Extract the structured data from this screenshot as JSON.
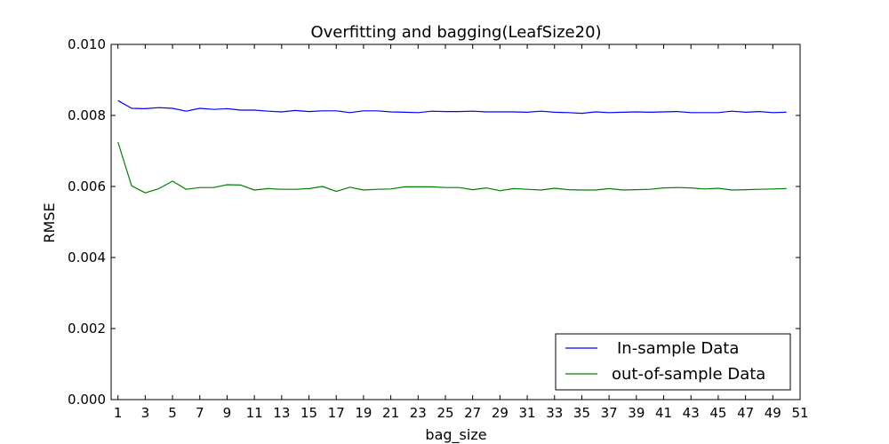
{
  "chart_data": {
    "type": "line",
    "title": "Overfitting and bagging(LeafSize20)",
    "xlabel": "bag_size",
    "ylabel": "RMSE",
    "xlim": [
      0.5,
      51
    ],
    "ylim": [
      0,
      0.01
    ],
    "xticks": [
      1,
      3,
      5,
      7,
      9,
      11,
      13,
      15,
      17,
      19,
      21,
      23,
      25,
      27,
      29,
      31,
      33,
      35,
      37,
      39,
      41,
      43,
      45,
      47,
      49,
      51
    ],
    "yticks": [
      0.0,
      0.002,
      0.004,
      0.006,
      0.008,
      0.01
    ],
    "ytick_labels": [
      "0.000",
      "0.002",
      "0.004",
      "0.006",
      "0.008",
      "0.010"
    ],
    "grid": false,
    "legend_position": "bottom-right",
    "x": [
      1,
      2,
      3,
      4,
      5,
      6,
      7,
      8,
      9,
      10,
      11,
      12,
      13,
      14,
      15,
      16,
      17,
      18,
      19,
      20,
      21,
      22,
      23,
      24,
      25,
      26,
      27,
      28,
      29,
      30,
      31,
      32,
      33,
      34,
      35,
      36,
      37,
      38,
      39,
      40,
      41,
      42,
      43,
      44,
      45,
      46,
      47,
      48,
      49,
      50
    ],
    "series": [
      {
        "name": "In-sample Data",
        "color": "#0000ff",
        "values": [
          0.00842,
          0.0082,
          0.00819,
          0.00822,
          0.0082,
          0.00812,
          0.0082,
          0.00817,
          0.00819,
          0.00815,
          0.00815,
          0.00812,
          0.0081,
          0.00814,
          0.00811,
          0.00813,
          0.00813,
          0.00808,
          0.00813,
          0.00813,
          0.0081,
          0.00809,
          0.00808,
          0.00812,
          0.00811,
          0.00811,
          0.00812,
          0.0081,
          0.0081,
          0.0081,
          0.00809,
          0.00812,
          0.00809,
          0.00808,
          0.00806,
          0.0081,
          0.00808,
          0.00809,
          0.0081,
          0.00809,
          0.0081,
          0.00811,
          0.00808,
          0.00808,
          0.00808,
          0.00812,
          0.00809,
          0.00811,
          0.00808,
          0.00809
        ]
      },
      {
        "name": "out-of-sample Data",
        "color": "#008000",
        "values": [
          0.00725,
          0.00602,
          0.00582,
          0.00594,
          0.00615,
          0.00592,
          0.00597,
          0.00597,
          0.00605,
          0.00604,
          0.0059,
          0.00594,
          0.00592,
          0.00592,
          0.00594,
          0.006,
          0.00586,
          0.00598,
          0.0059,
          0.00592,
          0.00593,
          0.00599,
          0.00599,
          0.00599,
          0.00597,
          0.00597,
          0.00591,
          0.00596,
          0.00588,
          0.00594,
          0.00592,
          0.0059,
          0.00595,
          0.00591,
          0.0059,
          0.0059,
          0.00594,
          0.0059,
          0.00591,
          0.00592,
          0.00596,
          0.00597,
          0.00596,
          0.00593,
          0.00595,
          0.0059,
          0.00591,
          0.00592,
          0.00593,
          0.00594
        ]
      }
    ]
  }
}
